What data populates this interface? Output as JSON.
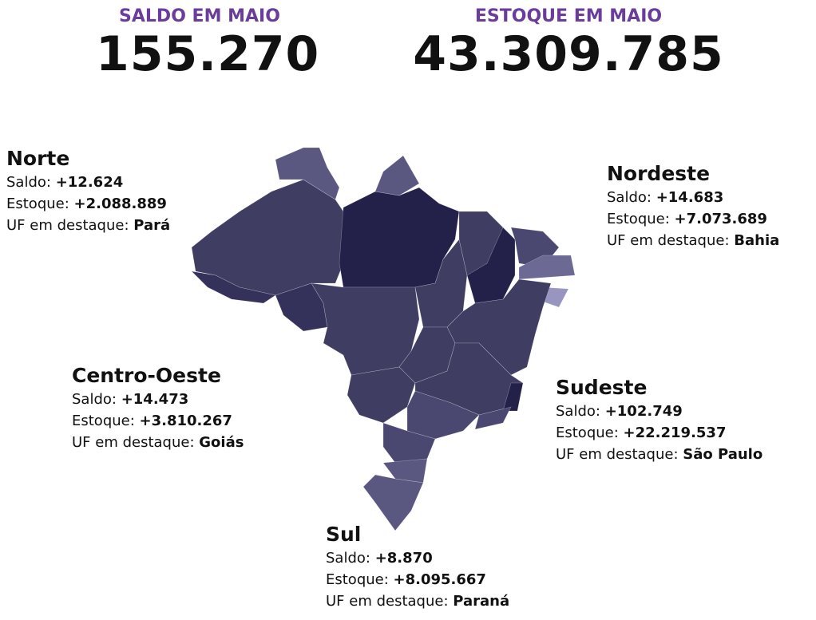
{
  "header": {
    "saldo": {
      "label": "SALDO EM MAIO",
      "value": "155.270"
    },
    "estoque": {
      "label": "ESTOQUE EM MAIO",
      "value": "43.309.785"
    }
  },
  "regions": [
    {
      "name": "Norte",
      "saldo_label": "Saldo:",
      "saldo": "+12.624",
      "estoque_label": "Estoque:",
      "estoque": "+2.088.889",
      "uf_label": "UF em destaque:",
      "uf": "Pará"
    },
    {
      "name": "Nordeste",
      "saldo_label": "Saldo:",
      "saldo": "+14.683",
      "estoque_label": "Estoque:",
      "estoque": "+7.073.689",
      "uf_label": "UF em destaque:",
      "uf": "Bahia"
    },
    {
      "name": "Centro-Oeste",
      "saldo_label": "Saldo:",
      "saldo": "+14.473",
      "estoque_label": "Estoque:",
      "estoque": "+3.810.267",
      "uf_label": "UF em destaque:",
      "uf": "Goiás"
    },
    {
      "name": "Sudeste",
      "saldo_label": "Saldo:",
      "saldo": "+102.749",
      "estoque_label": "Estoque:",
      "estoque": "+22.219.537",
      "uf_label": "UF em destaque:",
      "uf": "São Paulo"
    },
    {
      "name": "Sul",
      "saldo_label": "Saldo:",
      "saldo": "+8.870",
      "estoque_label": "Estoque:",
      "estoque": "+8.095.667",
      "uf_label": "UF em destaque:",
      "uf": "Paraná"
    }
  ]
}
